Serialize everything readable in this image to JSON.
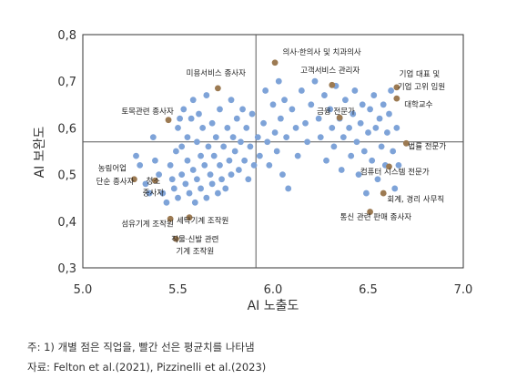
{
  "chart_data": {
    "type": "scatter",
    "xlabel": "AI 노출도",
    "ylabel": "AI 보완도",
    "xlim": [
      5.0,
      7.0
    ],
    "ylim": [
      0.3,
      0.8
    ],
    "xticks": [
      "5.0",
      "5.5",
      "6.0",
      "6.5",
      "7.0"
    ],
    "yticks": [
      "0,3",
      "0,4",
      "0,5",
      "0,6",
      "0,7",
      "0,8"
    ],
    "mean_lines": {
      "x": 5.91,
      "y": 0.57
    },
    "colors": {
      "point": "#7ea3d8",
      "highlight": "#9c7a52",
      "mean_line": "#5a5a5a",
      "frame": "#333333"
    },
    "points": [
      [
        5.28,
        0.54
      ],
      [
        5.3,
        0.52
      ],
      [
        5.33,
        0.48
      ],
      [
        5.35,
        0.46
      ],
      [
        5.37,
        0.58
      ],
      [
        5.38,
        0.53
      ],
      [
        5.4,
        0.5
      ],
      [
        5.42,
        0.46
      ],
      [
        5.44,
        0.44
      ],
      [
        5.46,
        0.52
      ],
      [
        5.47,
        0.49
      ],
      [
        5.48,
        0.47
      ],
      [
        5.49,
        0.55
      ],
      [
        5.5,
        0.6
      ],
      [
        5.5,
        0.45
      ],
      [
        5.51,
        0.62
      ],
      [
        5.52,
        0.5
      ],
      [
        5.52,
        0.56
      ],
      [
        5.53,
        0.64
      ],
      [
        5.54,
        0.48
      ],
      [
        5.55,
        0.53
      ],
      [
        5.55,
        0.58
      ],
      [
        5.56,
        0.46
      ],
      [
        5.57,
        0.62
      ],
      [
        5.58,
        0.51
      ],
      [
        5.58,
        0.66
      ],
      [
        5.59,
        0.44
      ],
      [
        5.6,
        0.57
      ],
      [
        5.6,
        0.49
      ],
      [
        5.61,
        0.63
      ],
      [
        5.62,
        0.54
      ],
      [
        5.62,
        0.47
      ],
      [
        5.63,
        0.6
      ],
      [
        5.64,
        0.52
      ],
      [
        5.65,
        0.67
      ],
      [
        5.65,
        0.45
      ],
      [
        5.66,
        0.56
      ],
      [
        5.67,
        0.5
      ],
      [
        5.68,
        0.61
      ],
      [
        5.68,
        0.48
      ],
      [
        5.69,
        0.54
      ],
      [
        5.7,
        0.58
      ],
      [
        5.71,
        0.46
      ],
      [
        5.72,
        0.52
      ],
      [
        5.72,
        0.64
      ],
      [
        5.73,
        0.49
      ],
      [
        5.74,
        0.56
      ],
      [
        5.75,
        0.47
      ],
      [
        5.76,
        0.6
      ],
      [
        5.77,
        0.53
      ],
      [
        5.78,
        0.5
      ],
      [
        5.78,
        0.66
      ],
      [
        5.79,
        0.58
      ],
      [
        5.8,
        0.55
      ],
      [
        5.81,
        0.62
      ],
      [
        5.82,
        0.51
      ],
      [
        5.83,
        0.57
      ],
      [
        5.84,
        0.64
      ],
      [
        5.85,
        0.53
      ],
      [
        5.86,
        0.6
      ],
      [
        5.87,
        0.49
      ],
      [
        5.88,
        0.56
      ],
      [
        5.89,
        0.63
      ],
      [
        5.9,
        0.52
      ],
      [
        5.92,
        0.58
      ],
      [
        5.93,
        0.54
      ],
      [
        5.95,
        0.61
      ],
      [
        5.96,
        0.68
      ],
      [
        5.97,
        0.57
      ],
      [
        5.98,
        0.52
      ],
      [
        6.0,
        0.65
      ],
      [
        6.01,
        0.59
      ],
      [
        6.02,
        0.55
      ],
      [
        6.03,
        0.7
      ],
      [
        6.04,
        0.62
      ],
      [
        6.05,
        0.5
      ],
      [
        6.06,
        0.66
      ],
      [
        6.07,
        0.58
      ],
      [
        6.08,
        0.47
      ],
      [
        6.1,
        0.64
      ],
      [
        6.12,
        0.6
      ],
      [
        6.13,
        0.54
      ],
      [
        6.15,
        0.68
      ],
      [
        6.17,
        0.61
      ],
      [
        6.18,
        0.57
      ],
      [
        6.2,
        0.65
      ],
      [
        6.22,
        0.7
      ],
      [
        6.24,
        0.62
      ],
      [
        6.25,
        0.58
      ],
      [
        6.27,
        0.67
      ],
      [
        6.28,
        0.53
      ],
      [
        6.3,
        0.64
      ],
      [
        6.31,
        0.6
      ],
      [
        6.32,
        0.56
      ],
      [
        6.33,
        0.69
      ],
      [
        6.35,
        0.62
      ],
      [
        6.36,
        0.51
      ],
      [
        6.37,
        0.58
      ],
      [
        6.38,
        0.66
      ],
      [
        6.4,
        0.6
      ],
      [
        6.41,
        0.54
      ],
      [
        6.42,
        0.63
      ],
      [
        6.43,
        0.68
      ],
      [
        6.44,
        0.57
      ],
      [
        6.45,
        0.5
      ],
      [
        6.46,
        0.61
      ],
      [
        6.47,
        0.65
      ],
      [
        6.48,
        0.55
      ],
      [
        6.49,
        0.46
      ],
      [
        6.5,
        0.59
      ],
      [
        6.51,
        0.64
      ],
      [
        6.52,
        0.53
      ],
      [
        6.53,
        0.67
      ],
      [
        6.54,
        0.6
      ],
      [
        6.55,
        0.49
      ],
      [
        6.56,
        0.62
      ],
      [
        6.57,
        0.56
      ],
      [
        6.58,
        0.65
      ],
      [
        6.59,
        0.52
      ],
      [
        6.6,
        0.59
      ],
      [
        6.61,
        0.63
      ],
      [
        6.62,
        0.68
      ],
      [
        6.63,
        0.55
      ],
      [
        6.64,
        0.47
      ],
      [
        6.65,
        0.6
      ],
      [
        6.66,
        0.52
      ]
    ],
    "highlighted": [
      {
        "label": "의사·한의사 및 치과의사",
        "x": 6.01,
        "y": 0.74,
        "lx": 6.05,
        "ly": 0.757,
        "anchor": "start"
      },
      {
        "label": "미용서비스 종사자",
        "x": 5.71,
        "y": 0.685,
        "lx": 5.7,
        "ly": 0.712,
        "anchor": "middle"
      },
      {
        "label": "고객서비스 관리자",
        "x": 6.31,
        "y": 0.692,
        "lx": 6.3,
        "ly": 0.718,
        "anchor": "middle"
      },
      {
        "label": "기업 대표 및",
        "x": 6.65,
        "y": 0.687,
        "lx": 6.77,
        "ly": 0.71,
        "anchor": "middle"
      },
      {
        "label": "기업 고위 임원",
        "x": 6.65,
        "y": 0.687,
        "lx": 6.78,
        "ly": 0.683,
        "anchor": "middle"
      },
      {
        "label": "대학교수",
        "x": 6.65,
        "y": 0.663,
        "lx": 6.69,
        "ly": 0.645,
        "anchor": "start"
      },
      {
        "label": "토목관련 종사자",
        "x": 5.45,
        "y": 0.617,
        "lx": 5.34,
        "ly": 0.63,
        "anchor": "middle"
      },
      {
        "label": "금융 전문가",
        "x": 6.35,
        "y": 0.622,
        "lx": 6.33,
        "ly": 0.63,
        "anchor": "middle"
      },
      {
        "label": "법률 전문가",
        "x": 6.7,
        "y": 0.567,
        "lx": 6.71,
        "ly": 0.555,
        "anchor": "start"
      },
      {
        "label": "컴퓨터 시스템 전문가",
        "x": 6.61,
        "y": 0.517,
        "lx": 6.64,
        "ly": 0.5,
        "anchor": "middle"
      },
      {
        "label": "농림어업",
        "x": 5.27,
        "y": 0.49,
        "lx": 5.08,
        "ly": 0.508,
        "anchor": "start"
      },
      {
        "label": "단순 종사자",
        "x": 5.27,
        "y": 0.49,
        "lx": 5.07,
        "ly": 0.48,
        "anchor": "start"
      },
      {
        "label": "청소",
        "x": 5.38,
        "y": 0.487,
        "lx": 5.37,
        "ly": 0.481,
        "anchor": "middle"
      },
      {
        "label": "종사자",
        "x": 5.38,
        "y": 0.487,
        "lx": 5.37,
        "ly": 0.455,
        "anchor": "middle"
      },
      {
        "label": "회계, 경리 사무직",
        "x": 6.58,
        "y": 0.46,
        "lx": 6.6,
        "ly": 0.442,
        "anchor": "start"
      },
      {
        "label": "섬유기계 조작원",
        "x": 5.46,
        "y": 0.405,
        "lx": 5.34,
        "ly": 0.389,
        "anchor": "middle"
      },
      {
        "label": "세탁기계 조작원",
        "x": 5.56,
        "y": 0.408,
        "lx": 5.63,
        "ly": 0.396,
        "anchor": "middle"
      },
      {
        "label": "통신 관련 판매 종사자",
        "x": 6.51,
        "y": 0.42,
        "lx": 6.54,
        "ly": 0.404,
        "anchor": "middle"
      },
      {
        "label": "직물·신발 관련",
        "x": 5.49,
        "y": 0.362,
        "lx": 5.59,
        "ly": 0.356,
        "anchor": "middle"
      },
      {
        "label": "기계 조작원",
        "x": 5.49,
        "y": 0.362,
        "lx": 5.59,
        "ly": 0.33,
        "anchor": "middle"
      }
    ]
  },
  "notes": {
    "note": "주: 1) 개별 점은 직업을, 빨간 선은 평균치를 나타냄",
    "source": "자료: Felton et al.(2021), Pizzinelli et al.(2023)"
  }
}
